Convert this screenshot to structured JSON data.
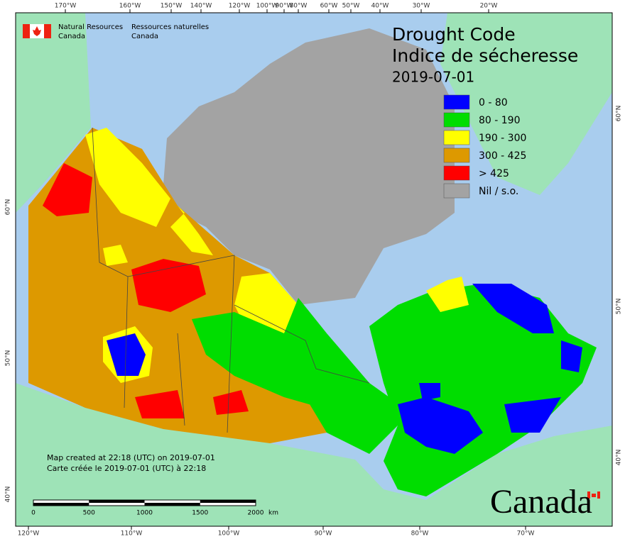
{
  "agency": {
    "en": [
      "Natural Resources",
      "Canada"
    ],
    "fr": [
      "Ressources naturelles",
      "Canada"
    ]
  },
  "title": [
    "Drought Code",
    "Indice de sécheresse"
  ],
  "date": "2019-07-01",
  "legend": [
    {
      "label": "0 - 80",
      "color": "#0000ff"
    },
    {
      "label": "80 - 190",
      "color": "#00dd00"
    },
    {
      "label": "190 - 300",
      "color": "#ffff00"
    },
    {
      "label": "300 - 425",
      "color": "#dd9900"
    },
    {
      "label": "> 425",
      "color": "#ff0000"
    },
    {
      "label": "Nil / s.o.",
      "color": "#a3a3a3"
    }
  ],
  "notes": [
    "Map created at 22:18 (UTC) on 2019-07-01",
    "Carte créée le 2019-07-01 (UTC) à 22:18"
  ],
  "scale": {
    "ticks": [
      0,
      500,
      1000,
      1500,
      2000
    ],
    "unit": "km"
  },
  "graticule": {
    "top": [
      "170°W",
      "160°W",
      "150°W",
      "140°W",
      "120°W",
      "100°W",
      "90°W",
      "80°W",
      "60°W",
      "50°W",
      "40°W",
      "30°W",
      "20°W"
    ],
    "bottom": [
      "120°W",
      "110°W",
      "100°W",
      "90°W",
      "80°W",
      "70°W"
    ],
    "left": [
      "60°N",
      "50°N",
      "40°N"
    ],
    "right": [
      "60°N",
      "50°N",
      "40°N"
    ]
  },
  "wordmark": "Canada"
}
